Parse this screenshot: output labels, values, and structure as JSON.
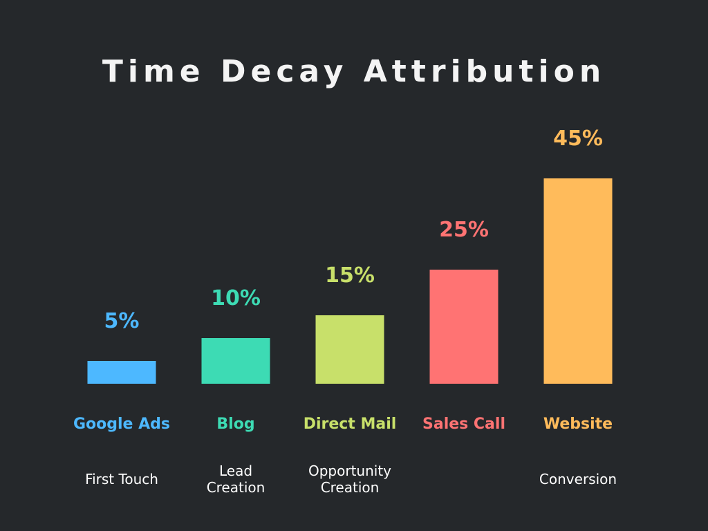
{
  "chart_data": {
    "type": "bar",
    "title": "Time Decay Attribution",
    "categories": [
      "Google Ads",
      "Blog",
      "Direct Mail",
      "Sales Call",
      "Website"
    ],
    "values": [
      5,
      10,
      15,
      25,
      45
    ],
    "value_labels": [
      "5%",
      "10%",
      "15%",
      "25%",
      "45%"
    ],
    "stages": [
      [
        "First Touch"
      ],
      [
        "Lead",
        "Creation"
      ],
      [
        "Opportunity",
        "Creation"
      ],
      [],
      [
        "Conversion"
      ]
    ],
    "colors": [
      "#4db8ff",
      "#3ddbb4",
      "#c8e06a",
      "#ff7373",
      "#ffbb5b"
    ],
    "stage_color": "#ffffff",
    "background": "#25282b",
    "ylim": [
      0,
      45
    ],
    "grid": false,
    "legend": "none"
  }
}
